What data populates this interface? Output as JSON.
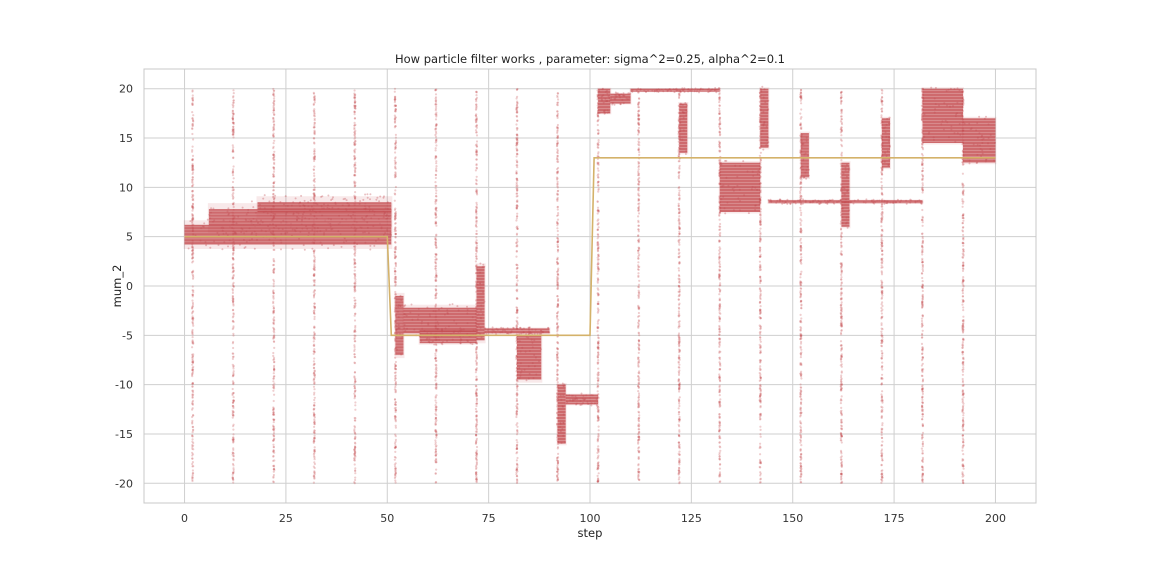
{
  "chart_data": {
    "type": "scatter",
    "title": "How particle filter works , parameter: sigma^2=0.25, alpha^2=0.1",
    "xlabel": "step",
    "ylabel": "mum_2",
    "xlim": [
      -10,
      210
    ],
    "ylim": [
      -22,
      22
    ],
    "xticks": [
      0,
      25,
      50,
      75,
      100,
      125,
      150,
      175,
      200
    ],
    "yticks": [
      -20,
      -15,
      -10,
      -5,
      0,
      5,
      10,
      15,
      20
    ],
    "grid": true,
    "legend": "none",
    "colors": {
      "particles": "#c44e52",
      "true_state": "#d4b26a",
      "grid": "#cfcfcf",
      "frame": "#c8c8c8"
    },
    "true_state": {
      "x": [
        0,
        50,
        51,
        100,
        101,
        200
      ],
      "y": [
        5,
        5,
        -5,
        -5,
        13,
        13
      ]
    },
    "resample_steps": [
      2,
      12,
      22,
      32,
      42,
      52,
      62,
      72,
      82,
      92,
      102,
      112,
      122,
      132,
      142,
      152,
      162,
      172,
      182,
      192
    ],
    "particle_clusters": [
      {
        "x": [
          0,
          51
        ],
        "y": [
          4.2,
          6.2
        ],
        "spread": 1.5
      },
      {
        "x": [
          6,
          51
        ],
        "y": [
          6.0,
          7.8
        ],
        "spread": 2.0
      },
      {
        "x": [
          18,
          51
        ],
        "y": [
          7.5,
          8.5
        ],
        "spread": 2.0
      },
      {
        "x": [
          52,
          54
        ],
        "y": [
          -7.0,
          -1.0
        ],
        "spread": 1.0
      },
      {
        "x": [
          54,
          72
        ],
        "y": [
          -4.8,
          -2.2
        ],
        "spread": 1.0
      },
      {
        "x": [
          58,
          72
        ],
        "y": [
          -5.8,
          -4.5
        ],
        "spread": 0.5
      },
      {
        "x": [
          72,
          74
        ],
        "y": [
          -5.5,
          2.0
        ],
        "spread": 1.0
      },
      {
        "x": [
          74,
          90
        ],
        "y": [
          -4.8,
          -4.3
        ],
        "spread": 0.3
      },
      {
        "x": [
          82,
          88
        ],
        "y": [
          -9.5,
          -5.0
        ],
        "spread": 1.0
      },
      {
        "x": [
          92,
          94
        ],
        "y": [
          -16.0,
          -10.0
        ],
        "spread": 0.5
      },
      {
        "x": [
          94,
          102
        ],
        "y": [
          -12.0,
          -11.0
        ],
        "spread": 0.3
      },
      {
        "x": [
          102,
          105
        ],
        "y": [
          17.5,
          20.0
        ],
        "spread": 0.3
      },
      {
        "x": [
          105,
          110
        ],
        "y": [
          18.5,
          19.5
        ],
        "spread": 0.3
      },
      {
        "x": [
          110,
          132
        ],
        "y": [
          19.7,
          20.0
        ],
        "spread": 0.2
      },
      {
        "x": [
          122,
          124
        ],
        "y": [
          13.5,
          18.5
        ],
        "spread": 0.5
      },
      {
        "x": [
          132,
          142
        ],
        "y": [
          7.5,
          12.5
        ],
        "spread": 0.5
      },
      {
        "x": [
          142,
          144
        ],
        "y": [
          14.0,
          20.0
        ],
        "spread": 0.5
      },
      {
        "x": [
          144,
          182
        ],
        "y": [
          8.4,
          8.7
        ],
        "spread": 0.2
      },
      {
        "x": [
          152,
          154
        ],
        "y": [
          11.0,
          15.5
        ],
        "spread": 0.5
      },
      {
        "x": [
          162,
          164
        ],
        "y": [
          6.0,
          12.5
        ],
        "spread": 0.5
      },
      {
        "x": [
          172,
          174
        ],
        "y": [
          12.0,
          17.0
        ],
        "spread": 0.5
      },
      {
        "x": [
          182,
          192
        ],
        "y": [
          14.5,
          20.0
        ],
        "spread": 0.5
      },
      {
        "x": [
          192,
          200
        ],
        "y": [
          12.5,
          17.0
        ],
        "spread": 0.5
      }
    ]
  }
}
